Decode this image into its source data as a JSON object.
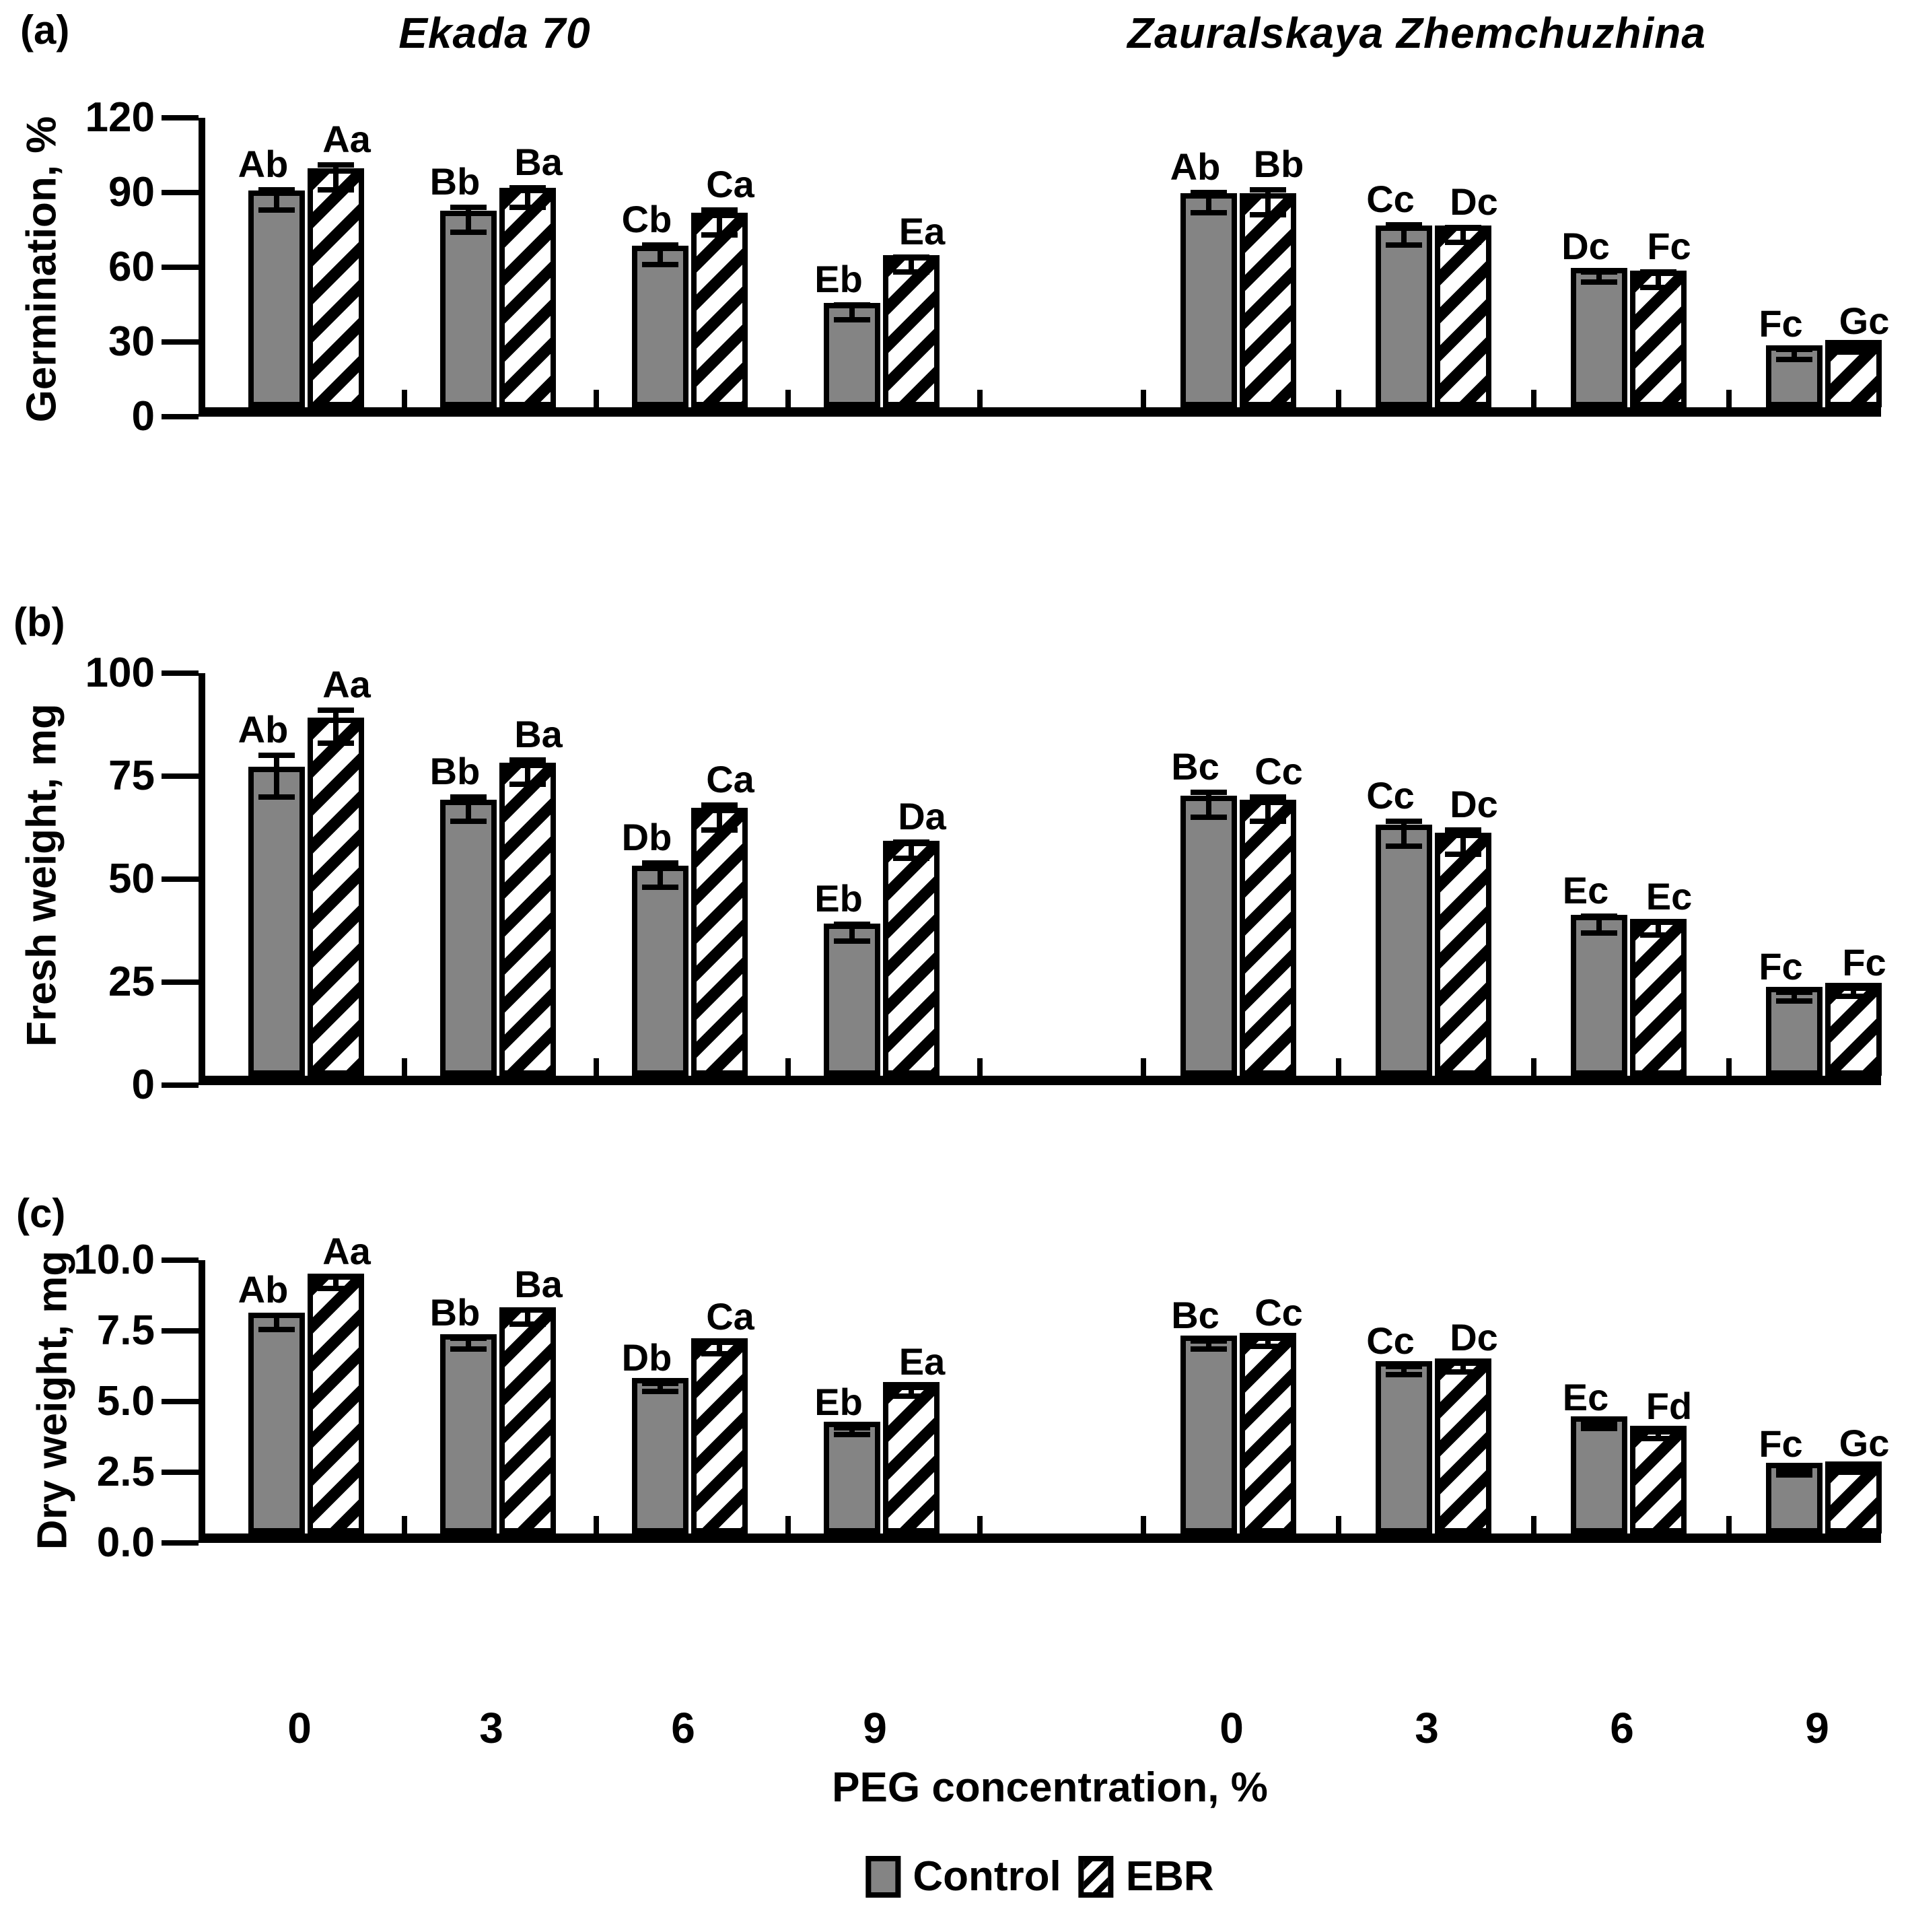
{
  "figure": {
    "xlabel": "PEG concentration, %",
    "background": "#ffffff",
    "colors": {
      "control_fill": "#848484",
      "hatch_stripe": "#000000",
      "axis": "#000000"
    },
    "legend": {
      "items": [
        {
          "label": "Control",
          "swatch": "gray-filled-square"
        },
        {
          "label": "EBR",
          "swatch": "diagonal-hatch-square"
        }
      ],
      "position": "bottom-center"
    }
  },
  "chart_data": [
    {
      "type": "bar",
      "panel_label": "(a)",
      "ylabel": "Germination, %",
      "ylim": [
        0,
        120
      ],
      "ytick_labels": [
        "0",
        "30",
        "60",
        "90",
        "120"
      ],
      "categories": [
        "0",
        "3",
        "6",
        "9"
      ],
      "grid": false,
      "varieties": [
        {
          "name": "Ekada 70",
          "series": [
            {
              "name": "Control",
              "values": [
                87,
                79,
                65,
                42
              ],
              "errors": [
                4,
                5,
                4,
                3
              ],
              "letters": [
                "Ab",
                "Bb",
                "Cb",
                "Eb"
              ]
            },
            {
              "name": "EBR",
              "values": [
                96,
                88,
                78,
                61
              ],
              "errors": [
                5,
                4,
                5,
                3
              ],
              "letters": [
                "Aa",
                "Ba",
                "Ca",
                "Ea"
              ]
            }
          ]
        },
        {
          "name": "Zauralskaya Zhemchuzhina",
          "series": [
            {
              "name": "Control",
              "values": [
                86,
                73,
                56,
                25
              ],
              "errors": [
                4,
                4,
                2,
                2
              ],
              "letters": [
                "Ab",
                "Cc",
                "Dc",
                "Fc"
              ]
            },
            {
              "name": "EBR",
              "values": [
                86,
                73,
                55,
                27
              ],
              "errors": [
                5,
                3,
                3,
                1
              ],
              "letters": [
                "Bb",
                "Dc",
                "Fc",
                "Gc"
              ]
            }
          ]
        }
      ]
    },
    {
      "type": "bar",
      "panel_label": "(b)",
      "ylabel": "Fresh weight, mg",
      "ylim": [
        0,
        100
      ],
      "ytick_labels": [
        "0",
        "25",
        "50",
        "75",
        "100"
      ],
      "categories": [
        "0",
        "3",
        "6",
        "9"
      ],
      "grid": false,
      "varieties": [
        {
          "name": "Ekada 70",
          "series": [
            {
              "name": "Control",
              "values": [
                75,
                67,
                51,
                37
              ],
              "errors": [
                5,
                3,
                3,
                2
              ],
              "letters": [
                "Ab",
                "Bb",
                "Db",
                "Eb"
              ]
            },
            {
              "name": "EBR",
              "values": [
                87,
                76,
                65,
                57
              ],
              "errors": [
                4,
                3,
                3,
                2
              ],
              "letters": [
                "Aa",
                "Ba",
                "Ca",
                "Da"
              ]
            }
          ]
        },
        {
          "name": "Zauralskaya Zhemchuzhina",
          "series": [
            {
              "name": "Control",
              "values": [
                68,
                61,
                39,
                21.5
              ],
              "errors": [
                3,
                3,
                2,
                1
              ],
              "letters": [
                "Bc",
                "Cc",
                "Ec",
                "Fc"
              ]
            },
            {
              "name": "EBR",
              "values": [
                67,
                59,
                38,
                22.5
              ],
              "errors": [
                3,
                3,
                1.5,
                1
              ],
              "letters": [
                "Cc",
                "Dc",
                "Ec",
                "Fc"
              ]
            }
          ]
        }
      ]
    },
    {
      "type": "bar",
      "panel_label": "(c)",
      "ylabel": "Dry weight, mg",
      "ylim": [
        0,
        10
      ],
      "ytick_labels": [
        "0.0",
        "2.5",
        "5.0",
        "7.5",
        "10.0"
      ],
      "categories": [
        "0",
        "3",
        "6",
        "9"
      ],
      "grid": false,
      "varieties": [
        {
          "name": "Ekada 70",
          "series": [
            {
              "name": "Control",
              "values": [
                7.8,
                7.05,
                5.5,
                3.95
              ],
              "errors": [
                0.25,
                0.2,
                0.15,
                0.12
              ],
              "letters": [
                "Ab",
                "Bb",
                "Db",
                "Eb"
              ]
            },
            {
              "name": "EBR",
              "values": [
                9.2,
                8.0,
                6.9,
                5.35
              ],
              "errors": [
                0.2,
                0.25,
                0.2,
                0.15
              ],
              "letters": [
                "Aa",
                "Ba",
                "Ca",
                "Ea"
              ]
            }
          ]
        },
        {
          "name": "Zauralskaya Zhemchuzhina",
          "series": [
            {
              "name": "Control",
              "values": [
                7.0,
                6.1,
                4.15,
                2.5
              ],
              "errors": [
                0.15,
                0.15,
                0.1,
                0.1
              ],
              "letters": [
                "Bc",
                "Cc",
                "Ec",
                "Fc"
              ]
            },
            {
              "name": "EBR",
              "values": [
                7.1,
                6.2,
                3.8,
                2.55
              ],
              "errors": [
                0.15,
                0.15,
                0.12,
                0.06
              ],
              "letters": [
                "Cc",
                "Dc",
                "Fd",
                "Gc"
              ]
            }
          ]
        }
      ]
    }
  ]
}
